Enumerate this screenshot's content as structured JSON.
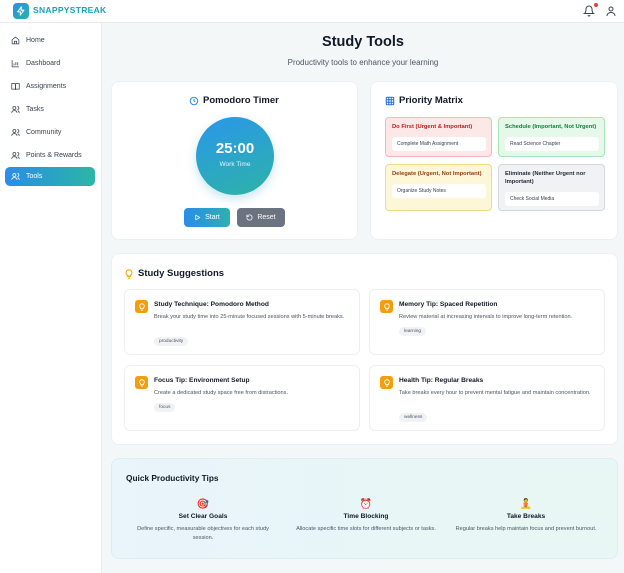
{
  "header": {
    "brand": "SNAPPYSTREAK",
    "icons": [
      "lightning-logo-icon",
      "bell-icon",
      "user-icon"
    ]
  },
  "sidebar": {
    "items": [
      {
        "label": "Home",
        "icon": "home-icon"
      },
      {
        "label": "Dashboard",
        "icon": "bar-chart-icon"
      },
      {
        "label": "Assignments",
        "icon": "book-icon"
      },
      {
        "label": "Tasks",
        "icon": "users-icon"
      },
      {
        "label": "Community",
        "icon": "users-icon"
      },
      {
        "label": "Points & Rewards",
        "icon": "users-icon"
      },
      {
        "label": "Tools",
        "icon": "users-icon",
        "active": true
      }
    ]
  },
  "main": {
    "title": "Study Tools",
    "subtitle": "Productivity tools to enhance your learning"
  },
  "pomodoro": {
    "title": "Pomodoro Timer",
    "time": "25:00",
    "mode": "Work Time",
    "start_label": "Start",
    "reset_label": "Reset"
  },
  "matrix": {
    "title": "Priority Matrix",
    "quadrants": [
      {
        "title": "Do First (Urgent & Important)",
        "item": "Complete Math Assignment"
      },
      {
        "title": "Schedule (Important, Not Urgent)",
        "item": "Read Science Chapter"
      },
      {
        "title": "Delegate (Urgent, Not Important)",
        "item": "Organize Study Notes"
      },
      {
        "title": "Eliminate (Neither Urgent nor Important)",
        "item": "Check Social Media"
      }
    ]
  },
  "suggestions": {
    "title": "Study Suggestions",
    "items": [
      {
        "title": "Study Technique: Pomodoro Method",
        "desc": "Break your study time into 25-minute focused sessions with 5-minute breaks.",
        "tag": "productivity"
      },
      {
        "title": "Memory Tip: Spaced Repetition",
        "desc": "Review material at increasing intervals to improve long-term retention.",
        "tag": "learning"
      },
      {
        "title": "Focus Tip: Environment Setup",
        "desc": "Create a dedicated study space free from distractions.",
        "tag": "focus"
      },
      {
        "title": "Health Tip: Regular Breaks",
        "desc": "Take breaks every hour to prevent mental fatigue and maintain concentration.",
        "tag": "wellness"
      }
    ]
  },
  "tips": {
    "title": "Quick Productivity Tips",
    "items": [
      {
        "icon": "🎯",
        "icon_name": "target-icon",
        "title": "Set Clear Goals",
        "desc": "Define specific, measurable objectives for each study session."
      },
      {
        "icon": "⏰",
        "icon_name": "alarm-clock-icon",
        "title": "Time Blocking",
        "desc": "Allocate specific time slots for different subjects or tasks."
      },
      {
        "icon": "🧘",
        "icon_name": "meditation-icon",
        "title": "Take Breaks",
        "desc": "Regular breaks help maintain focus and prevent burnout."
      }
    ]
  },
  "colors": {
    "accent_blue": "#2a8de8",
    "accent_teal": "#2bb6a5",
    "suggestion_icon": "#f59e0b"
  }
}
